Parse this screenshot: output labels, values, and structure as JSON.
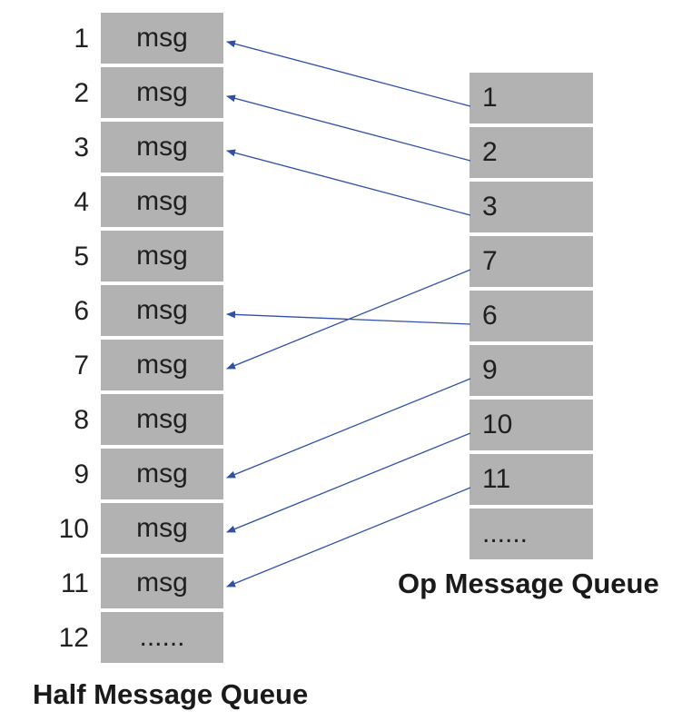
{
  "half_queue": {
    "caption": "Half Message Queue",
    "indices": [
      "1",
      "2",
      "3",
      "4",
      "5",
      "6",
      "7",
      "8",
      "9",
      "10",
      "11",
      "12"
    ],
    "cells": [
      "msg",
      "msg",
      "msg",
      "msg",
      "msg",
      "msg",
      "msg",
      "msg",
      "msg",
      "msg",
      "msg",
      "......"
    ]
  },
  "op_queue": {
    "caption": "Op Message Queue",
    "cells": [
      "1",
      "2",
      "3",
      "7",
      "6",
      "9",
      "10",
      "11",
      "......"
    ]
  },
  "arrows": [
    {
      "from_op": 0,
      "to_half": 0
    },
    {
      "from_op": 1,
      "to_half": 1
    },
    {
      "from_op": 2,
      "to_half": 2
    },
    {
      "from_op": 3,
      "to_half": 6
    },
    {
      "from_op": 4,
      "to_half": 5
    },
    {
      "from_op": 5,
      "to_half": 8
    },
    {
      "from_op": 6,
      "to_half": 9
    },
    {
      "from_op": 7,
      "to_half": 10
    }
  ],
  "colors": {
    "cell": "#b2b2b2",
    "arrow": "#2f4fa8"
  }
}
